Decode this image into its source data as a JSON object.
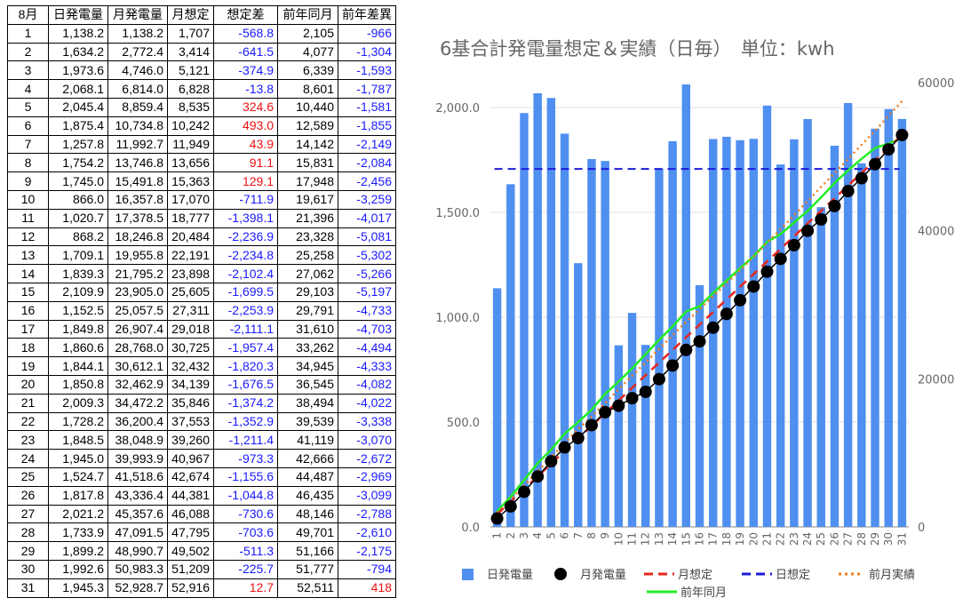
{
  "table": {
    "headers": [
      "8月",
      "日発電量",
      "月発電量",
      "月想定",
      "想定差",
      "前年同月",
      "前年差異"
    ],
    "rows": [
      [
        "1",
        "1,138.2",
        "1,138.2",
        "1,707",
        "-568.8",
        "2,105",
        "-966"
      ],
      [
        "2",
        "1,634.2",
        "2,772.4",
        "3,414",
        "-641.5",
        "4,077",
        "-1,304"
      ],
      [
        "3",
        "1,973.6",
        "4,746.0",
        "5,121",
        "-374.9",
        "6,339",
        "-1,593"
      ],
      [
        "4",
        "2,068.1",
        "6,814.0",
        "6,828",
        "-13.8",
        "8,601",
        "-1,787"
      ],
      [
        "5",
        "2,045.4",
        "8,859.4",
        "8,535",
        "324.6",
        "10,440",
        "-1,581"
      ],
      [
        "6",
        "1,875.4",
        "10,734.8",
        "10,242",
        "493.0",
        "12,589",
        "-1,855"
      ],
      [
        "7",
        "1,257.8",
        "11,992.7",
        "11,949",
        "43.9",
        "14,142",
        "-2,149"
      ],
      [
        "8",
        "1,754.2",
        "13,746.8",
        "13,656",
        "91.1",
        "15,831",
        "-2,084"
      ],
      [
        "9",
        "1,745.0",
        "15,491.8",
        "15,363",
        "129.1",
        "17,948",
        "-2,456"
      ],
      [
        "10",
        "866.0",
        "16,357.8",
        "17,070",
        "-711.9",
        "19,617",
        "-3,259"
      ],
      [
        "11",
        "1,020.7",
        "17,378.5",
        "18,777",
        "-1,398.1",
        "21,396",
        "-4,017"
      ],
      [
        "12",
        "868.2",
        "18,246.8",
        "20,484",
        "-2,236.9",
        "23,328",
        "-5,081"
      ],
      [
        "13",
        "1,709.1",
        "19,955.8",
        "22,191",
        "-2,234.8",
        "25,258",
        "-5,302"
      ],
      [
        "14",
        "1,839.3",
        "21,795.2",
        "23,898",
        "-2,102.4",
        "27,062",
        "-5,266"
      ],
      [
        "15",
        "2,109.9",
        "23,905.0",
        "25,605",
        "-1,699.5",
        "29,103",
        "-5,197"
      ],
      [
        "16",
        "1,152.5",
        "25,057.5",
        "27,311",
        "-2,253.9",
        "29,791",
        "-4,733"
      ],
      [
        "17",
        "1,849.8",
        "26,907.4",
        "29,018",
        "-2,111.1",
        "31,610",
        "-4,703"
      ],
      [
        "18",
        "1,860.6",
        "28,768.0",
        "30,725",
        "-1,957.4",
        "33,262",
        "-4,494"
      ],
      [
        "19",
        "1,844.1",
        "30,612.1",
        "32,432",
        "-1,820.3",
        "34,945",
        "-4,333"
      ],
      [
        "20",
        "1,850.8",
        "32,462.9",
        "34,139",
        "-1,676.5",
        "36,545",
        "-4,082"
      ],
      [
        "21",
        "2,009.3",
        "34,472.2",
        "35,846",
        "-1,374.2",
        "38,494",
        "-4,022"
      ],
      [
        "22",
        "1,728.2",
        "36,200.4",
        "37,553",
        "-1,352.9",
        "39,539",
        "-3,338"
      ],
      [
        "23",
        "1,848.5",
        "38,048.9",
        "39,260",
        "-1,211.4",
        "41,119",
        "-3,070"
      ],
      [
        "24",
        "1,945.0",
        "39,993.9",
        "40,967",
        "-973.3",
        "42,666",
        "-2,672"
      ],
      [
        "25",
        "1,524.7",
        "41,518.6",
        "42,674",
        "-1,155.6",
        "44,487",
        "-2,969"
      ],
      [
        "26",
        "1,817.8",
        "43,336.4",
        "44,381",
        "-1,044.8",
        "46,435",
        "-3,099"
      ],
      [
        "27",
        "2,021.2",
        "45,357.6",
        "46,088",
        "-730.6",
        "48,146",
        "-2,788"
      ],
      [
        "28",
        "1,733.9",
        "47,091.5",
        "47,795",
        "-703.6",
        "49,701",
        "-2,610"
      ],
      [
        "29",
        "1,899.2",
        "48,990.7",
        "49,502",
        "-511.3",
        "51,166",
        "-2,175"
      ],
      [
        "30",
        "1,992.6",
        "50,983.3",
        "51,209",
        "-225.7",
        "51,777",
        "-794"
      ],
      [
        "31",
        "1,945.3",
        "52,928.7",
        "52,916",
        "12.7",
        "52,511",
        "418"
      ]
    ]
  },
  "colors": {
    "negative": "#1a1aff",
    "positive": "#ee1111",
    "bar": "#4f8ff0",
    "monthly": "#000000",
    "monthly_target": "#e8261c",
    "daily_target": "#1c1cd6",
    "prev_month": "#f07c1a",
    "prev_year": "#22ee22"
  },
  "chart_data": {
    "type": "bar",
    "title": "6基合計発電量想定＆実績（日毎）　単位：kwh",
    "categories": [
      "1",
      "2",
      "3",
      "4",
      "5",
      "6",
      "7",
      "8",
      "9",
      "10",
      "11",
      "12",
      "13",
      "14",
      "15",
      "16",
      "17",
      "18",
      "19",
      "20",
      "21",
      "22",
      "23",
      "24",
      "25",
      "26",
      "27",
      "28",
      "29",
      "30",
      "31"
    ],
    "ylim_left": [
      0,
      2000
    ],
    "yticks_left": [
      "0.0",
      "500.0",
      "1,000.0",
      "1,500.0",
      "2,000.0"
    ],
    "ylim_right": [
      0,
      60000
    ],
    "yticks_right": [
      "0",
      "20000",
      "40000",
      "60000"
    ],
    "grid": true,
    "legend_position": "bottom",
    "series": [
      {
        "name": "日発電量",
        "kind": "bar",
        "axis": "left",
        "values": [
          1138.2,
          1634.2,
          1973.6,
          2068.1,
          2045.4,
          1875.4,
          1257.8,
          1754.2,
          1745.0,
          866.0,
          1020.7,
          868.2,
          1709.1,
          1839.3,
          2109.9,
          1152.5,
          1849.8,
          1860.6,
          1844.1,
          1850.8,
          2009.3,
          1728.2,
          1848.5,
          1945.0,
          1524.7,
          1817.8,
          2021.2,
          1733.9,
          1899.2,
          1992.6,
          1945.3
        ]
      },
      {
        "name": "月発電量",
        "kind": "line-markers",
        "axis": "right",
        "values": [
          1138.2,
          2772.4,
          4746.0,
          6814.0,
          8859.4,
          10734.8,
          11992.7,
          13746.8,
          15491.8,
          16357.8,
          17378.5,
          18246.8,
          19955.8,
          21795.2,
          23905.0,
          25057.5,
          26907.4,
          28768.0,
          30612.1,
          32462.9,
          34472.2,
          36200.4,
          38048.9,
          39993.9,
          41518.6,
          43336.4,
          45357.6,
          47091.5,
          48990.7,
          50983.3,
          52928.7
        ]
      },
      {
        "name": "月想定",
        "kind": "dashed-line",
        "axis": "right",
        "values": [
          1707,
          3414,
          5121,
          6828,
          8535,
          10242,
          11949,
          13656,
          15363,
          17070,
          18777,
          20484,
          22191,
          23898,
          25605,
          27311,
          29018,
          30725,
          32432,
          34139,
          35846,
          37553,
          39260,
          40967,
          42674,
          44381,
          46088,
          47795,
          49502,
          51209,
          52916
        ]
      },
      {
        "name": "日想定",
        "kind": "dashed-line",
        "axis": "left",
        "values": [
          1707,
          1707,
          1707,
          1707,
          1707,
          1707,
          1707,
          1707,
          1707,
          1707,
          1707,
          1707,
          1707,
          1707,
          1707,
          1707,
          1707,
          1707,
          1707,
          1707,
          1707,
          1707,
          1707,
          1707,
          1707,
          1707,
          1707,
          1707,
          1707,
          1707,
          1707
        ]
      },
      {
        "name": "前月実績",
        "kind": "dotted-line",
        "axis": "right",
        "values": [
          1900,
          3700,
          5600,
          7500,
          9400,
          11300,
          13200,
          14900,
          16700,
          18600,
          20400,
          22200,
          24000,
          25900,
          27700,
          29400,
          31200,
          32900,
          34700,
          36500,
          38400,
          40200,
          42100,
          44000,
          45900,
          47800,
          49700,
          51600,
          53500,
          55500,
          57500
        ]
      },
      {
        "name": "前年同月",
        "kind": "line",
        "axis": "right",
        "values": [
          2105,
          4077,
          6339,
          8601,
          10440,
          12589,
          14142,
          15831,
          17948,
          19617,
          21396,
          23328,
          25258,
          27062,
          29103,
          29791,
          31610,
          33262,
          34945,
          36545,
          38494,
          39539,
          41119,
          42666,
          44487,
          46435,
          48146,
          49701,
          51166,
          51777,
          52511
        ]
      }
    ]
  }
}
